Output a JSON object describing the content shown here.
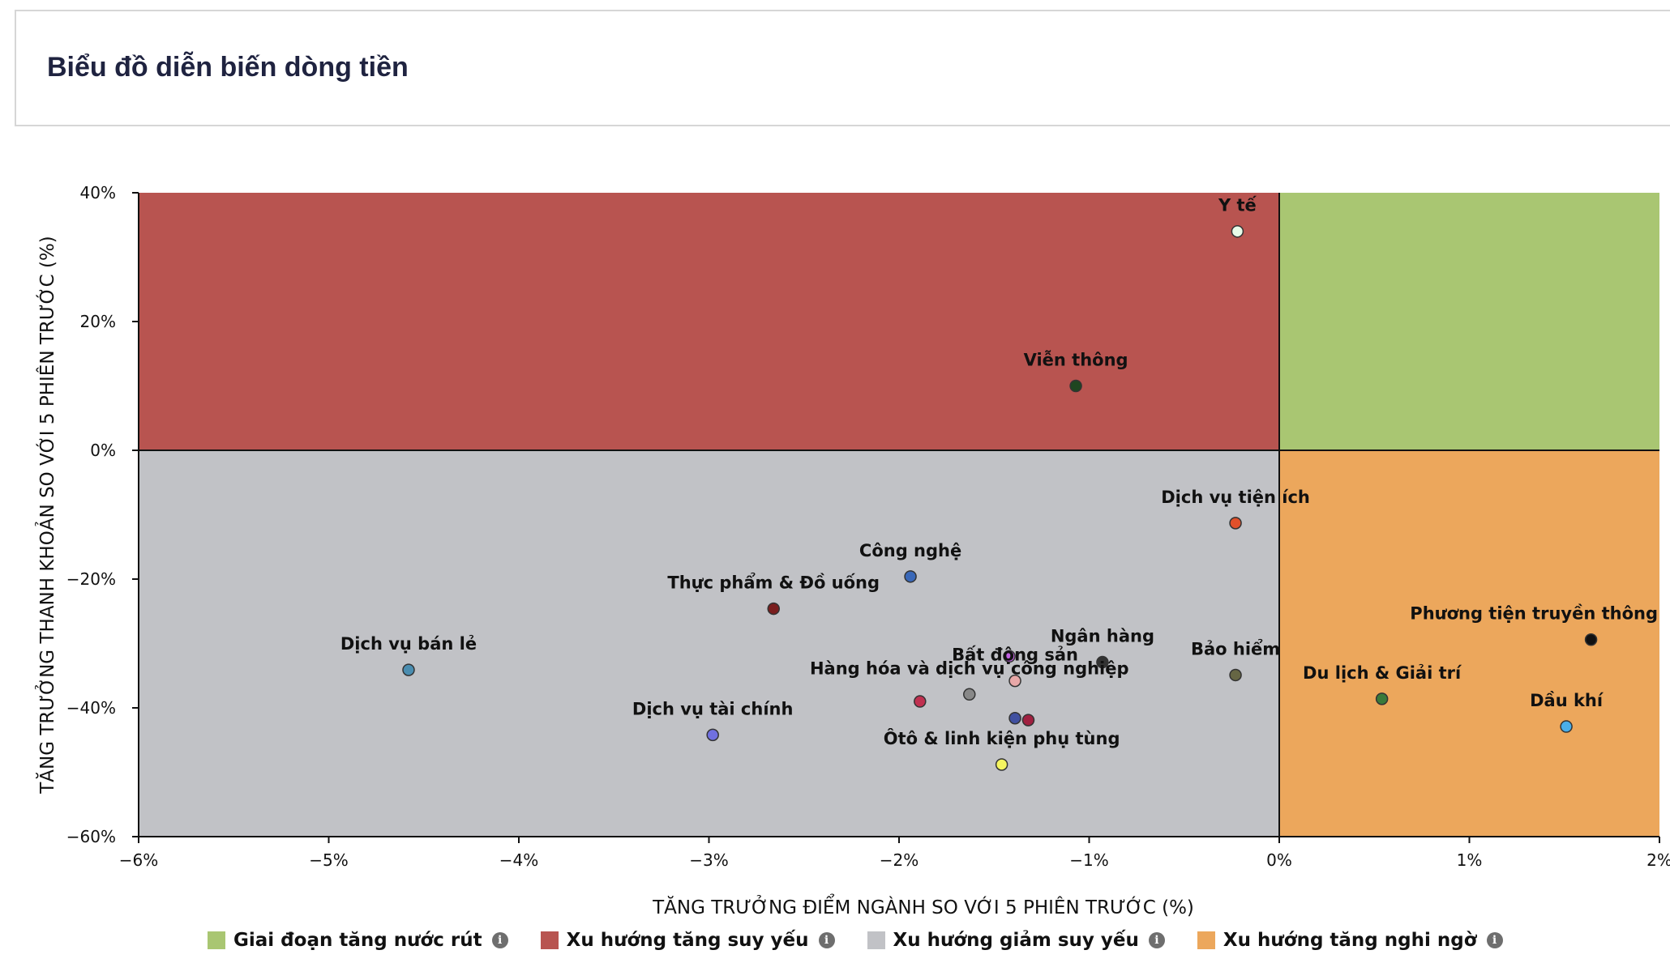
{
  "card": {
    "title": "Biểu đồ diễn biến dòng tiền"
  },
  "chart_data": {
    "type": "scatter",
    "title": "",
    "xlabel": "TĂNG TRƯỞNG ĐIỂM NGÀNH SO VỚI 5 PHIÊN TRƯỚC (%)",
    "ylabel": "TĂNG TRƯỞNG THANH KHOẢN SO VỚI 5 PHIÊN TRƯỚC (%)",
    "xlim": [
      -6,
      2
    ],
    "ylim": [
      -60,
      40
    ],
    "xticks": [
      -6,
      -5,
      -4,
      -3,
      -2,
      -1,
      0,
      1,
      2
    ],
    "yticks": [
      40,
      20,
      0,
      -20,
      -40,
      -60
    ],
    "xtick_labels": [
      "−6%",
      "−5%",
      "−4%",
      "−3%",
      "−2%",
      "−1%",
      "0%",
      "1%",
      "2%"
    ],
    "ytick_labels": [
      "40%",
      "20%",
      "0%",
      "−20%",
      "−40%",
      "−60%"
    ],
    "quadrants": [
      {
        "name": "Giai đoạn tăng nước rút",
        "color": "#a9c672",
        "x": [
          0,
          2
        ],
        "y": [
          0,
          40
        ]
      },
      {
        "name": "Xu hướng tăng suy yếu",
        "color": "#b85450",
        "x": [
          -6,
          0
        ],
        "y": [
          0,
          40
        ]
      },
      {
        "name": "Xu hướng giảm suy yếu",
        "color": "#c1c2c6",
        "x": [
          -6,
          0
        ],
        "y": [
          -60,
          0
        ]
      },
      {
        "name": "Xu hướng tăng nghi ngờ",
        "color": "#eca75c",
        "x": [
          0,
          2
        ],
        "y": [
          -60,
          0
        ]
      }
    ],
    "points": [
      {
        "name": "Y tế",
        "x": -0.22,
        "y": 34,
        "color": "#e8fbe8"
      },
      {
        "name": "Viễn thông",
        "x": -1.07,
        "y": 10,
        "color": "#1e4620"
      },
      {
        "name": "Dịch vụ tiện ích",
        "x": -0.23,
        "y": -11.3,
        "color": "#e0502a"
      },
      {
        "name": "Công nghệ",
        "x": -1.94,
        "y": -19.6,
        "color": "#3a68b8"
      },
      {
        "name": "Thực phẩm & Đồ uống",
        "x": -2.66,
        "y": -24.6,
        "color": "#7a1e1e"
      },
      {
        "name": "Dịch vụ bán lẻ",
        "x": -4.58,
        "y": -34.1,
        "color": "#4a8db0"
      },
      {
        "name": "Ngân hàng",
        "x": -0.93,
        "y": -32.9,
        "color": "#333333"
      },
      {
        "name": "Bảo hiểm",
        "x": -0.23,
        "y": -34.9,
        "color": "#666644"
      },
      {
        "name": "Bất động sản",
        "x": -1.39,
        "y": -35.8,
        "color": "#e8a8a8"
      },
      {
        "name": "Hàng hóa và dịch vụ công nghiệp",
        "x": -1.63,
        "y": -37.9,
        "color": "#888888"
      },
      {
        "name": "Dịch vụ tài chính",
        "x": -2.98,
        "y": -44.2,
        "color": "#7070e0"
      },
      {
        "name": "Ôtô & linh kiện phụ tùng",
        "x": -1.46,
        "y": -48.8,
        "color": "#f5f560"
      },
      {
        "name": "Du lịch & Giải trí",
        "x": 0.54,
        "y": -38.6,
        "color": "#3a7a3a"
      },
      {
        "name": "Phương tiện truyền thông",
        "x": 1.64,
        "y": -29.4,
        "color": "#111111"
      },
      {
        "name": "Dầu khí",
        "x": 1.51,
        "y": -42.9,
        "color": "#4aaee8"
      }
    ],
    "unlabeled_points": [
      {
        "x": -1.42,
        "y": -32.0,
        "color": "#c060e0"
      },
      {
        "x": -1.89,
        "y": -39.0,
        "color": "#c03050"
      },
      {
        "x": -1.39,
        "y": -41.6,
        "color": "#4050a0"
      },
      {
        "x": -1.32,
        "y": -41.9,
        "color": "#a02040"
      }
    ],
    "legend_position": "bottom",
    "grid": false
  },
  "legend": {
    "items": [
      {
        "label": "Giai đoạn tăng nước rút",
        "color": "#a9c672",
        "icon": "info-icon"
      },
      {
        "label": "Xu hướng tăng suy yếu",
        "color": "#b85450",
        "icon": "info-icon"
      },
      {
        "label": "Xu hướng giảm suy yếu",
        "color": "#c1c2c6",
        "icon": "info-icon"
      },
      {
        "label": "Xu hướng tăng nghi ngờ",
        "color": "#eca75c",
        "icon": "info-icon"
      }
    ]
  }
}
